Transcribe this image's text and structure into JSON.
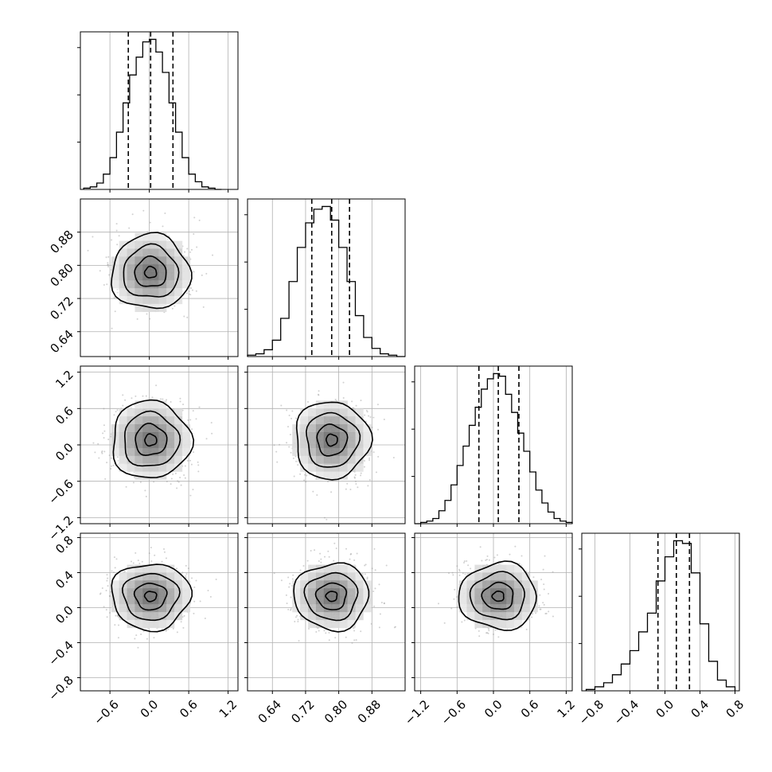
{
  "figure": {
    "type": "corner",
    "parameters": 4,
    "colors": {
      "ink": "#000000",
      "grid": "#b0b0b0",
      "scatter": "#9a9a9a"
    }
  },
  "chart_data": {
    "type": "corner",
    "grid": true,
    "params": [
      {
        "index": 0,
        "range": [
          -1.05,
          1.35
        ],
        "ticks": [
          -0.6,
          0.0,
          0.6,
          1.2
        ],
        "tick_labels": [
          "−0.6",
          "0.0",
          "0.6",
          "1.2"
        ],
        "quantiles": [
          -0.32,
          0.02,
          0.36
        ]
      },
      {
        "index": 1,
        "range": [
          0.58,
          0.96
        ],
        "ticks": [
          0.64,
          0.72,
          0.8,
          0.88
        ],
        "tick_labels": [
          "0.64",
          "0.72",
          "0.80",
          "0.88"
        ],
        "quantiles": [
          0.735,
          0.783,
          0.826
        ]
      },
      {
        "index": 2,
        "range": [
          -1.3,
          1.3
        ],
        "ticks": [
          -1.2,
          -0.6,
          0.0,
          0.6,
          1.2
        ],
        "tick_labels": [
          "−1.2",
          "−0.6",
          "0.0",
          "0.6",
          "1.2"
        ],
        "quantiles": [
          -0.24,
          0.08,
          0.42
        ]
      },
      {
        "index": 3,
        "range": [
          -0.95,
          0.85
        ],
        "ticks": [
          -0.8,
          -0.4,
          0.0,
          0.4,
          0.8
        ],
        "tick_labels": [
          "−0.8",
          "−0.4",
          "0.0",
          "0.4",
          "0.8"
        ],
        "quantiles": [
          -0.08,
          0.13,
          0.28
        ]
      }
    ],
    "histograms": [
      {
        "param": 0,
        "bins": [
          -1.0,
          -0.9,
          -0.8,
          -0.7,
          -0.6,
          -0.5,
          -0.4,
          -0.3,
          -0.2,
          -0.1,
          0.0,
          0.1,
          0.2,
          0.3,
          0.4,
          0.5,
          0.6,
          0.7,
          0.8,
          0.9,
          1.0,
          1.1
        ],
        "counts": [
          1,
          2,
          5,
          12,
          25,
          45,
          68,
          90,
          104,
          116,
          118,
          108,
          92,
          68,
          45,
          25,
          12,
          6,
          2,
          1,
          0
        ]
      },
      {
        "param": 1,
        "bins": [
          0.58,
          0.6,
          0.62,
          0.64,
          0.66,
          0.68,
          0.7,
          0.72,
          0.74,
          0.76,
          0.78,
          0.8,
          0.82,
          0.84,
          0.86,
          0.88,
          0.9,
          0.92,
          0.94,
          0.96
        ],
        "counts": [
          1,
          2,
          5,
          12,
          28,
          55,
          80,
          98,
          108,
          110,
          100,
          80,
          55,
          30,
          14,
          6,
          2,
          1,
          0
        ]
      },
      {
        "param": 2,
        "bins": [
          -1.3,
          -1.2,
          -1.1,
          -1.0,
          -0.9,
          -0.8,
          -0.7,
          -0.6,
          -0.5,
          -0.4,
          -0.3,
          -0.2,
          -0.1,
          0.0,
          0.1,
          0.2,
          0.3,
          0.4,
          0.5,
          0.6,
          0.7,
          0.8,
          0.9,
          1.0,
          1.1,
          1.2,
          1.3
        ],
        "counts": [
          0,
          1,
          2,
          4,
          10,
          18,
          30,
          45,
          60,
          76,
          90,
          104,
          112,
          116,
          114,
          100,
          86,
          70,
          56,
          40,
          26,
          16,
          9,
          4,
          2,
          1
        ]
      },
      {
        "param": 3,
        "bins": [
          -0.9,
          -0.8,
          -0.7,
          -0.6,
          -0.5,
          -0.4,
          -0.3,
          -0.2,
          -0.1,
          0.0,
          0.1,
          0.2,
          0.3,
          0.4,
          0.5,
          0.6,
          0.7,
          0.8
        ],
        "counts": [
          1,
          3,
          6,
          12,
          20,
          30,
          44,
          58,
          82,
          100,
          112,
          110,
          88,
          50,
          22,
          8,
          3
        ]
      }
    ],
    "pairs": [
      {
        "row": 1,
        "col": 0,
        "center": [
          0.02,
          0.783
        ],
        "sigma": [
          0.3,
          0.045
        ]
      },
      {
        "row": 2,
        "col": 0,
        "center": [
          0.02,
          0.08
        ],
        "sigma": [
          0.3,
          0.32
        ]
      },
      {
        "row": 2,
        "col": 1,
        "center": [
          0.783,
          0.08
        ],
        "sigma": [
          0.045,
          0.32
        ]
      },
      {
        "row": 3,
        "col": 0,
        "center": [
          0.02,
          0.13
        ],
        "sigma": [
          0.3,
          0.19
        ]
      },
      {
        "row": 3,
        "col": 1,
        "center": [
          0.783,
          0.13
        ],
        "sigma": [
          0.045,
          0.19
        ]
      },
      {
        "row": 3,
        "col": 2,
        "center": [
          0.08,
          0.13
        ],
        "sigma": [
          0.32,
          0.19
        ]
      }
    ]
  }
}
